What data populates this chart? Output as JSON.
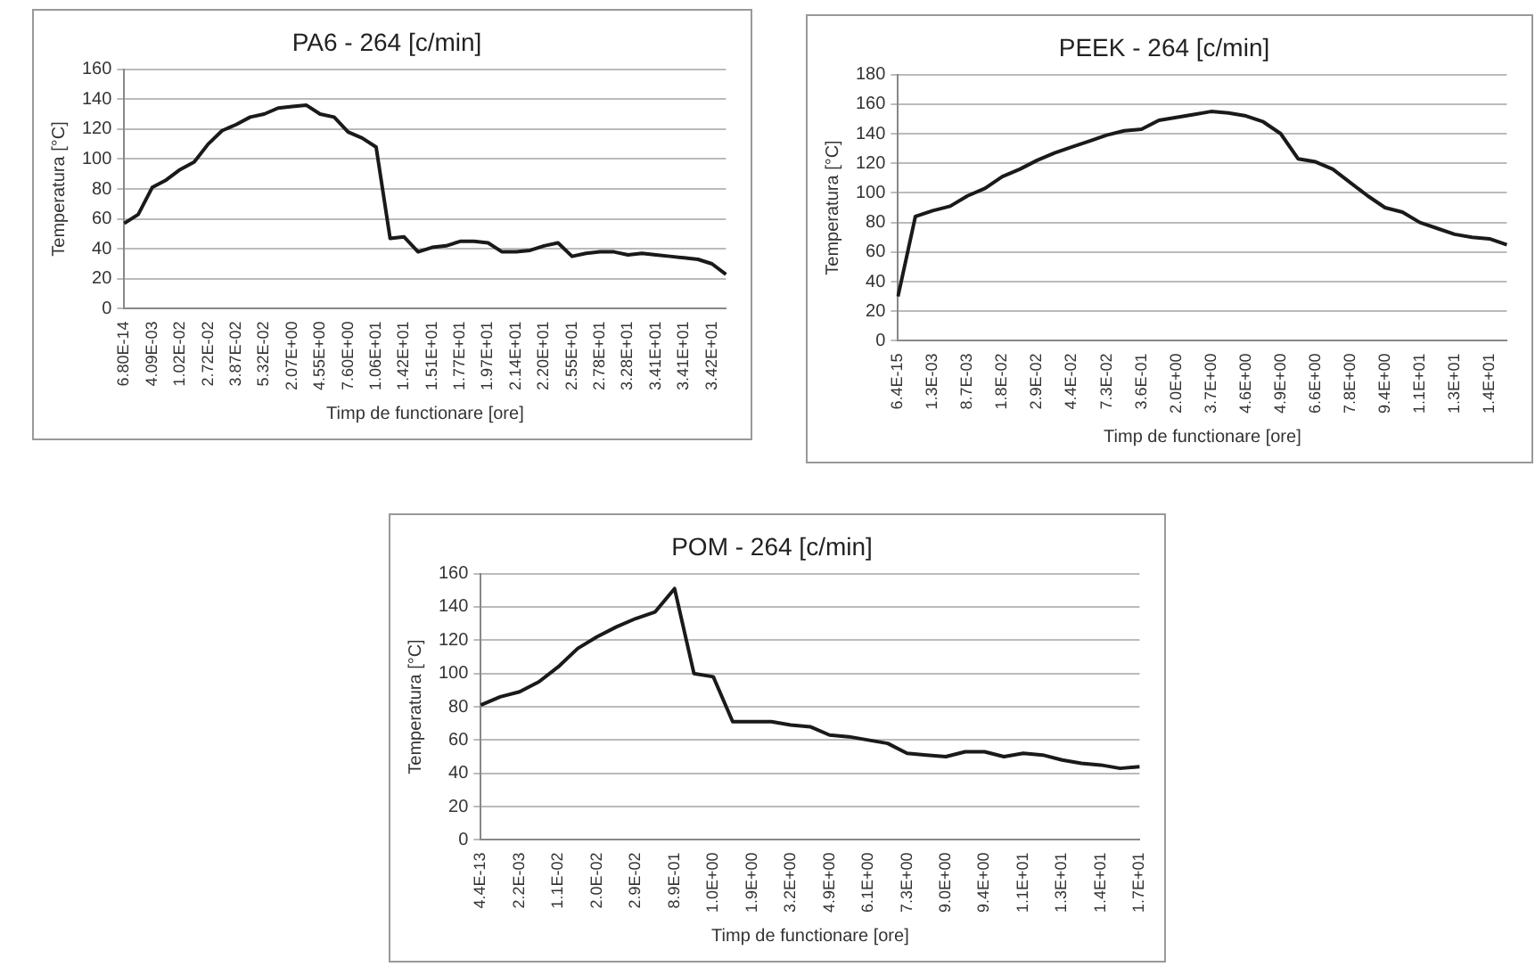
{
  "chart_data": [
    {
      "type": "line",
      "title": "PA6 - 264 [c/min]",
      "xlabel": "Timp de functionare [ore]",
      "ylabel": "Temperatura [°C]",
      "color": "#1a1a1a",
      "marker": "none",
      "grid": "y",
      "ylim": [
        0,
        160
      ],
      "yticks": [
        0,
        20,
        40,
        60,
        80,
        100,
        120,
        140,
        160
      ],
      "categories": [
        "6.80E-14",
        null,
        "4.09E-03",
        null,
        "1.02E-02",
        null,
        "2.72E-02",
        null,
        "3.87E-02",
        null,
        "5.32E-02",
        null,
        "2.07E+00",
        null,
        "4.55E+00",
        null,
        "7.60E+00",
        null,
        "1.06E+01",
        null,
        "1.42E+01",
        null,
        "1.51E+01",
        null,
        "1.77E+01",
        null,
        "1.97E+01",
        null,
        "2.14E+01",
        null,
        "2.20E+01",
        null,
        "2.55E+01",
        null,
        "2.78E+01",
        null,
        "3.28E+01",
        null,
        "3.41E+01",
        null,
        "3.41E+01",
        null,
        "3.42E+01",
        null
      ],
      "values": [
        57,
        63,
        81,
        86,
        93,
        98,
        110,
        119,
        123,
        128,
        130,
        134,
        135,
        136,
        130,
        128,
        118,
        114,
        108,
        47,
        48,
        38,
        41,
        42,
        45,
        45,
        44,
        38,
        38,
        39,
        42,
        44,
        35,
        37,
        38,
        38,
        36,
        37,
        36,
        35,
        34,
        33,
        30,
        23
      ]
    },
    {
      "type": "line",
      "title": "PEEK - 264 [c/min]",
      "xlabel": "Timp de functionare [ore]",
      "ylabel": "Temperatura [°C]",
      "color": "#1a1a1a",
      "marker": "none",
      "grid": "y",
      "ylim": [
        0,
        180
      ],
      "yticks": [
        0,
        20,
        40,
        60,
        80,
        100,
        120,
        140,
        160,
        180
      ],
      "categories": [
        "6.4E-15",
        null,
        "1.3E-03",
        null,
        "8.7E-03",
        null,
        "1.8E-02",
        null,
        "2.9E-02",
        null,
        "4.4E-02",
        null,
        "7.3E-02",
        null,
        "3.6E-01",
        null,
        "2.0E+00",
        null,
        "3.7E+00",
        null,
        "4.6E+00",
        null,
        "4.9E+00",
        null,
        "6.6E+00",
        null,
        "7.8E+00",
        null,
        "9.4E+00",
        null,
        "1.1E+01",
        null,
        "1.3E+01",
        null,
        "1.4E+01",
        null
      ],
      "values": [
        30,
        84,
        88,
        91,
        98,
        103,
        111,
        116,
        122,
        127,
        131,
        135,
        139,
        142,
        143,
        149,
        151,
        153,
        155,
        154,
        152,
        148,
        140,
        123,
        121,
        116,
        107,
        98,
        90,
        87,
        80,
        76,
        72,
        70,
        69,
        65
      ]
    },
    {
      "type": "line",
      "title": "POM - 264 [c/min]",
      "xlabel": "Timp de functionare [ore]",
      "ylabel": "Temperatura [°C]",
      "color": "#1a1a1a",
      "marker": "none",
      "grid": "y",
      "ylim": [
        0,
        160
      ],
      "yticks": [
        0,
        20,
        40,
        60,
        80,
        100,
        120,
        140,
        160
      ],
      "categories": [
        "4.4E-13",
        null,
        "2.2E-03",
        null,
        "1.1E-02",
        null,
        "2.0E-02",
        null,
        "2.9E-02",
        null,
        "8.9E-01",
        null,
        "1.0E+00",
        null,
        "1.9E+00",
        null,
        "3.2E+00",
        null,
        "4.9E+00",
        null,
        "6.1E+00",
        null,
        "7.3E+00",
        null,
        "9.0E+00",
        null,
        "9.4E+00",
        null,
        "1.1E+01",
        null,
        "1.3E+01",
        null,
        "1.4E+01",
        null,
        "1.7E+01"
      ],
      "values": [
        81,
        86,
        89,
        95,
        104,
        115,
        122,
        128,
        133,
        137,
        151,
        100,
        98,
        71,
        71,
        71,
        69,
        68,
        63,
        62,
        60,
        58,
        52,
        51,
        50,
        53,
        53,
        50,
        52,
        51,
        48,
        46,
        45,
        43,
        44
      ]
    }
  ]
}
